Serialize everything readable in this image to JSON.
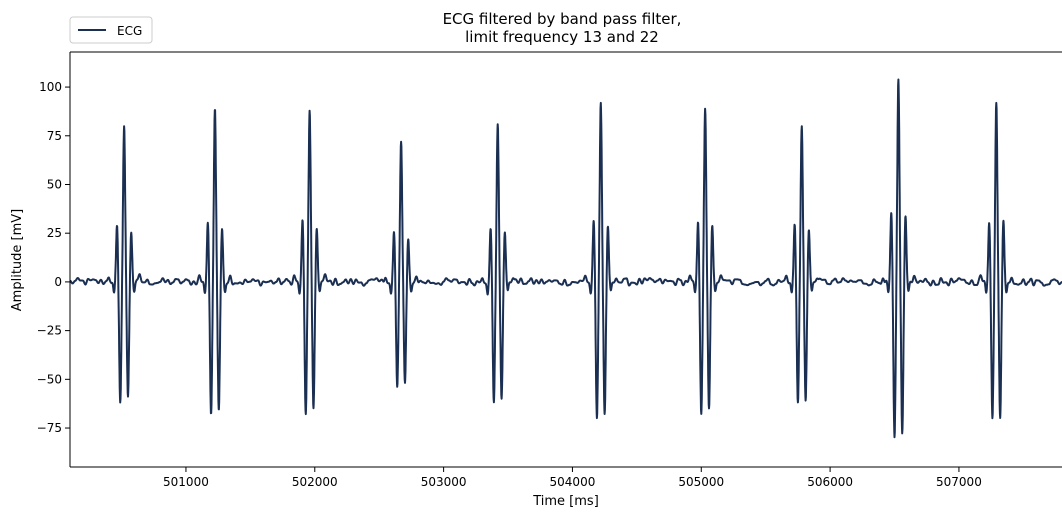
{
  "chart_data": {
    "type": "line",
    "title": [
      "ECG filtered by band pass filter,",
      "limit frequency 13 and 22"
    ],
    "xlabel": "Time [ms]",
    "ylabel": "Amplitude [mV]",
    "xlim": [
      500100,
      507800
    ],
    "ylim": [
      -95,
      118
    ],
    "xticks": [
      501000,
      502000,
      503000,
      504000,
      505000,
      506000,
      507000
    ],
    "yticks": [
      100,
      75,
      50,
      25,
      0,
      -25,
      -50,
      -75
    ],
    "ytick_labels": [
      "100",
      "75",
      "50",
      "25",
      "0",
      "−25",
      "−50",
      "−75"
    ],
    "grid": false,
    "legend": {
      "position": "top-left"
    },
    "series": [
      {
        "name": "ECG",
        "color": "#1b2f52",
        "beats": [
          {
            "t": 500520,
            "peak": 80,
            "neg1": -62,
            "neg2": -59,
            "pos1": 29,
            "pos2": 26
          },
          {
            "t": 501225,
            "peak": 89,
            "neg1": -68,
            "neg2": -66,
            "pos1": 31,
            "pos2": 28
          },
          {
            "t": 501960,
            "peak": 88,
            "neg1": -68,
            "neg2": -65,
            "pos1": 32,
            "pos2": 28
          },
          {
            "t": 502670,
            "peak": 72,
            "neg1": -54,
            "neg2": -52,
            "pos1": 26,
            "pos2": 22
          },
          {
            "t": 503420,
            "peak": 81,
            "neg1": -62,
            "neg2": -60,
            "pos1": 28,
            "pos2": 26
          },
          {
            "t": 504220,
            "peak": 92,
            "neg1": -70,
            "neg2": -68,
            "pos1": 32,
            "pos2": 29
          },
          {
            "t": 505030,
            "peak": 89,
            "neg1": -68,
            "neg2": -65,
            "pos1": 31,
            "pos2": 29
          },
          {
            "t": 505780,
            "peak": 80,
            "neg1": -62,
            "neg2": -61,
            "pos1": 30,
            "pos2": 27
          },
          {
            "t": 506530,
            "peak": 104,
            "neg1": -80,
            "neg2": -78,
            "pos1": 36,
            "pos2": 34
          },
          {
            "t": 507290,
            "peak": 92,
            "neg1": -70,
            "neg2": -70,
            "pos1": 31,
            "pos2": 32
          }
        ]
      }
    ]
  }
}
